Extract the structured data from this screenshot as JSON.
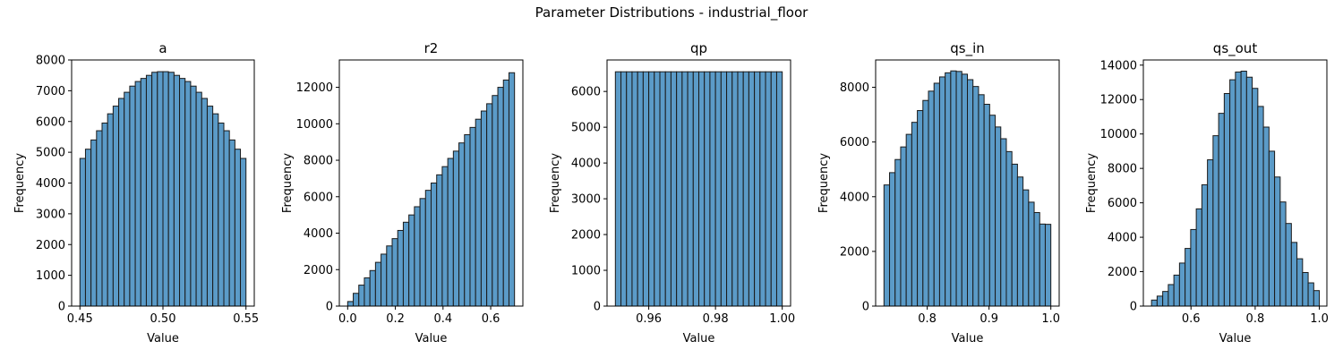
{
  "figure": {
    "title": "Parameter Distributions - industrial_floor"
  },
  "style": {
    "bar_fill": "#5b9bc8",
    "bar_edge": "#1a1a1a",
    "axis_color": "#000000"
  },
  "chart_data": [
    {
      "type": "bar",
      "title": "a",
      "xlabel": "Value",
      "ylabel": "Frequency",
      "xlim": [
        0.445,
        0.555
      ],
      "ylim": [
        0,
        8000
      ],
      "xticks": [
        0.45,
        0.5,
        0.55
      ],
      "xtick_labels": [
        "0.45",
        "0.50",
        "0.55"
      ],
      "yticks": [
        0,
        1000,
        2000,
        3000,
        4000,
        5000,
        6000,
        7000,
        8000
      ],
      "ytick_labels": [
        "0",
        "1000",
        "2000",
        "3000",
        "4000",
        "5000",
        "6000",
        "7000",
        "8000"
      ],
      "bin_range": [
        0.45,
        0.55
      ],
      "values": [
        4800,
        5100,
        5400,
        5700,
        5950,
        6250,
        6500,
        6750,
        6950,
        7150,
        7300,
        7400,
        7500,
        7600,
        7620,
        7620,
        7600,
        7500,
        7400,
        7300,
        7150,
        6950,
        6750,
        6500,
        6250,
        5950,
        5700,
        5400,
        5100,
        4800
      ]
    },
    {
      "type": "bar",
      "title": "r2",
      "xlabel": "Value",
      "ylabel": "Frequency",
      "xlim": [
        -0.035,
        0.735
      ],
      "ylim": [
        0,
        13500
      ],
      "xticks": [
        0.0,
        0.2,
        0.4,
        0.6
      ],
      "xtick_labels": [
        "0.0",
        "0.2",
        "0.4",
        "0.6"
      ],
      "yticks": [
        0,
        2000,
        4000,
        6000,
        8000,
        10000,
        12000
      ],
      "ytick_labels": [
        "0",
        "2000",
        "4000",
        "6000",
        "8000",
        "10000",
        "12000"
      ],
      "bin_range": [
        0.0,
        0.7
      ],
      "values": [
        250,
        700,
        1150,
        1550,
        1950,
        2400,
        2850,
        3300,
        3700,
        4150,
        4600,
        5000,
        5450,
        5900,
        6350,
        6750,
        7200,
        7650,
        8100,
        8500,
        8950,
        9400,
        9800,
        10250,
        10700,
        11100,
        11550,
        12000,
        12400,
        12800
      ]
    },
    {
      "type": "bar",
      "title": "qp",
      "xlabel": "Value",
      "ylabel": "Frequency",
      "xlim": [
        0.9475,
        1.0025
      ],
      "ylim": [
        0,
        6880
      ],
      "xticks": [
        0.96,
        0.98,
        1.0
      ],
      "xtick_labels": [
        "0.96",
        "0.98",
        "1.00"
      ],
      "yticks": [
        0,
        1000,
        2000,
        3000,
        4000,
        5000,
        6000
      ],
      "ytick_labels": [
        "0",
        "1000",
        "2000",
        "3000",
        "4000",
        "5000",
        "6000"
      ],
      "bin_range": [
        0.95,
        1.0
      ],
      "values": [
        6550,
        6550,
        6550,
        6550,
        6550,
        6550,
        6550,
        6550,
        6550,
        6550,
        6550,
        6550,
        6550,
        6550,
        6550,
        6550,
        6550,
        6550,
        6550,
        6550,
        6550,
        6550,
        6550,
        6550,
        6550,
        6550,
        6550,
        6550,
        6550,
        6550
      ]
    },
    {
      "type": "bar",
      "title": "qs_in",
      "xlabel": "Value",
      "ylabel": "Frequency",
      "xlim": [
        0.7165,
        1.0135
      ],
      "ylim": [
        0,
        9000
      ],
      "xticks": [
        0.8,
        0.9,
        1.0
      ],
      "xtick_labels": [
        "0.8",
        "0.9",
        "1.0"
      ],
      "yticks": [
        0,
        2000,
        4000,
        6000,
        8000
      ],
      "ytick_labels": [
        "0",
        "2000",
        "4000",
        "6000",
        "8000"
      ],
      "bin_range": [
        0.73,
        1.0
      ],
      "values": [
        4430,
        4880,
        5360,
        5820,
        6280,
        6720,
        7150,
        7520,
        7860,
        8150,
        8380,
        8530,
        8600,
        8580,
        8480,
        8280,
        8030,
        7730,
        7380,
        6980,
        6550,
        6120,
        5650,
        5190,
        4720,
        4250,
        3800,
        3420,
        3000,
        2990
      ]
    },
    {
      "type": "bar",
      "title": "qs_out",
      "xlabel": "Value",
      "ylabel": "Frequency",
      "xlim": [
        0.4515,
        1.0235
      ],
      "ylim": [
        0,
        14300
      ],
      "xticks": [
        0.6,
        0.8,
        1.0
      ],
      "xtick_labels": [
        "0.6",
        "0.8",
        "1.0"
      ],
      "yticks": [
        0,
        2000,
        4000,
        6000,
        8000,
        10000,
        12000,
        14000
      ],
      "ytick_labels": [
        "0",
        "2000",
        "4000",
        "6000",
        "8000",
        "10000",
        "12000",
        "14000"
      ],
      "bin_range": [
        0.477,
        1.0
      ],
      "values": [
        350,
        580,
        850,
        1250,
        1800,
        2500,
        3350,
        4450,
        5650,
        7050,
        8500,
        9900,
        11200,
        12350,
        13150,
        13600,
        13650,
        13300,
        12650,
        11600,
        10400,
        9000,
        7500,
        6050,
        4800,
        3700,
        2750,
        1950,
        1350,
        900
      ]
    }
  ]
}
